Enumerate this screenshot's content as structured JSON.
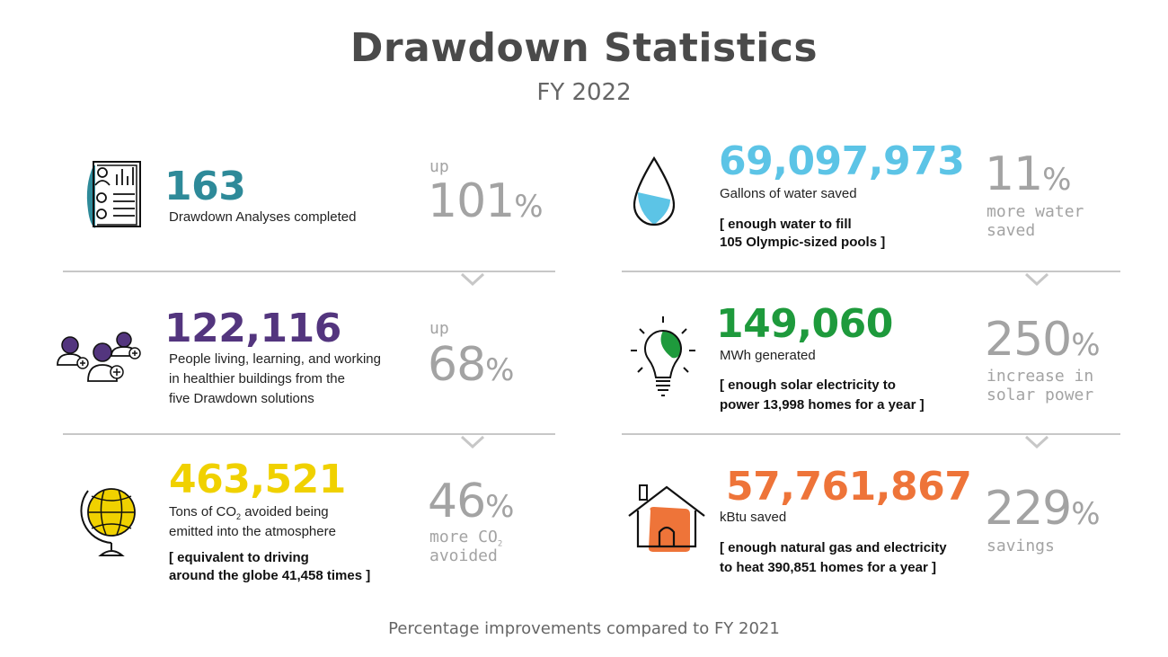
{
  "header": {
    "title": "Drawdown Statistics",
    "subtitle": "FY 2022"
  },
  "footer": {
    "text": "Percentage improvements compared to FY 2021"
  },
  "colors": {
    "teal": "#2e8a99",
    "purple": "#53357e",
    "yellow": "#f0d100",
    "blue": "#5cc4e6",
    "green": "#1e9a3c",
    "orange": "#ee7439",
    "gray": "#a3a3a3"
  },
  "left": [
    {
      "icon": "analysis-report-icon",
      "value": "163",
      "desc1": "Drawdown Analyses completed",
      "pct_prefix": "up",
      "pct_value": "101",
      "pct_symbol": "%"
    },
    {
      "icon": "people-icon",
      "value": "122,116",
      "desc1": "People living, learning, and working",
      "desc2": "in healthier buildings from the",
      "desc3": "five Drawdown solutions",
      "pct_prefix": "up",
      "pct_value": "68",
      "pct_symbol": "%"
    },
    {
      "icon": "globe-icon",
      "value": "463,521",
      "desc1_pre": "Tons of CO",
      "desc1_sub": "2",
      "desc1_post": " avoided being",
      "desc2": "emitted into the atmosphere",
      "note1": "[ equivalent to driving",
      "note2": "around the globe 41,458 times ]",
      "pct_value": "46",
      "pct_symbol": "%",
      "pct_suffix_pre": "more CO",
      "pct_suffix_sub": "2",
      "pct_suffix2": "avoided"
    }
  ],
  "right": [
    {
      "icon": "water-drop-icon",
      "value": "69,097,973",
      "desc1": "Gallons of water saved",
      "note1": "[ enough water to fill",
      "note2": "105 Olympic-sized pools ]",
      "pct_value": "11",
      "pct_symbol": "%",
      "pct_suffix1": "more water",
      "pct_suffix2": "saved"
    },
    {
      "icon": "lightbulb-icon",
      "value": "149,060",
      "desc1": "MWh generated",
      "note1": "[ enough solar electricity to",
      "note2": "power 13,998 homes for a year ]",
      "pct_value": "250",
      "pct_symbol": "%",
      "pct_suffix1": "increase in",
      "pct_suffix2": "solar power"
    },
    {
      "icon": "house-icon",
      "value": "57,761,867",
      "desc1": "kBtu saved",
      "note1": "[ enough natural gas and electricity",
      "note2": "to heat 390,851 homes for a year ]",
      "pct_value": "229",
      "pct_symbol": "%",
      "pct_suffix1": "savings"
    }
  ]
}
